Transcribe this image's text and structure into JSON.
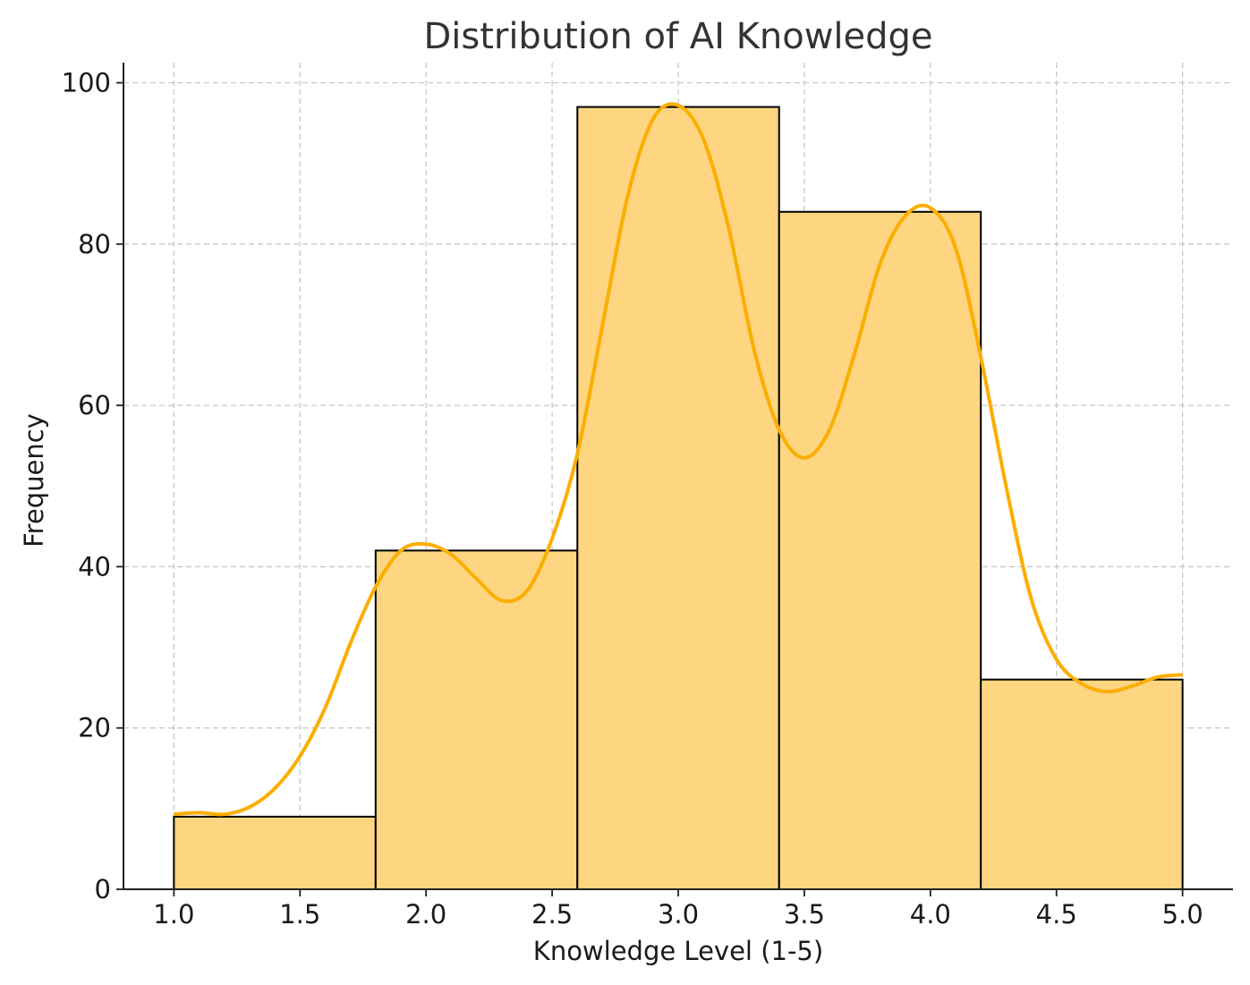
{
  "chart_data": {
    "type": "histogram",
    "title": "Distribution of AI Knowledge",
    "xlabel": "Knowledge Level (1-5)",
    "ylabel": "Frequency",
    "xlim": [
      0.8,
      5.2
    ],
    "ylim": [
      0,
      102.5
    ],
    "x_ticks": [
      1.0,
      1.5,
      2.0,
      2.5,
      3.0,
      3.5,
      4.0,
      4.5,
      5.0
    ],
    "x_tick_labels": [
      "1.0",
      "1.5",
      "2.0",
      "2.5",
      "3.0",
      "3.5",
      "4.0",
      "4.5",
      "5.0"
    ],
    "y_ticks": [
      0,
      20,
      40,
      60,
      80,
      100
    ],
    "y_tick_labels": [
      "0",
      "20",
      "40",
      "60",
      "80",
      "100"
    ],
    "bins": [
      {
        "start": 1.0,
        "end": 1.8,
        "count": 9
      },
      {
        "start": 1.8,
        "end": 2.6,
        "count": 42
      },
      {
        "start": 2.6,
        "end": 3.4,
        "count": 97
      },
      {
        "start": 3.4,
        "end": 4.2,
        "count": 84
      },
      {
        "start": 4.2,
        "end": 5.0,
        "count": 26
      }
    ],
    "kde": {
      "x": [
        1.0,
        1.1,
        1.2,
        1.3,
        1.4,
        1.5,
        1.6,
        1.7,
        1.8,
        1.9,
        2.0,
        2.1,
        2.2,
        2.3,
        2.4,
        2.5,
        2.6,
        2.7,
        2.8,
        2.9,
        3.0,
        3.1,
        3.2,
        3.3,
        3.4,
        3.5,
        3.6,
        3.7,
        3.8,
        3.9,
        4.0,
        4.1,
        4.2,
        4.3,
        4.4,
        4.5,
        4.6,
        4.7,
        4.8,
        4.9,
        5.0
      ],
      "y": [
        9.3,
        9.5,
        9.3,
        10.2,
        12.5,
        16.5,
        22.5,
        30.5,
        37.5,
        42.0,
        42.8,
        41.5,
        38.5,
        35.8,
        37.0,
        43.5,
        54.0,
        70.0,
        86.0,
        95.5,
        97.2,
        93.0,
        82.0,
        67.0,
        57.0,
        53.5,
        57.0,
        66.5,
        77.5,
        83.5,
        84.5,
        79.5,
        66.0,
        50.0,
        36.0,
        28.5,
        25.5,
        24.5,
        25.2,
        26.3,
        26.6
      ]
    },
    "grid": true,
    "colors": {
      "bar_fill": "#fed580",
      "bar_edge": "#000000",
      "kde_line": "#fbae00"
    }
  }
}
